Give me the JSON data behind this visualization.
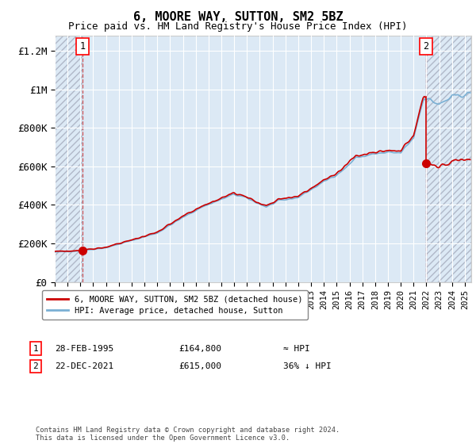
{
  "title": "6, MOORE WAY, SUTTON, SM2 5BZ",
  "subtitle": "Price paid vs. HM Land Registry's House Price Index (HPI)",
  "title_fontsize": 11,
  "subtitle_fontsize": 9,
  "ylabel_fontsize": 9,
  "xlabel_fontsize": 7.5,
  "ylim": [
    0,
    1280000
  ],
  "xlim_start": 1993.0,
  "xlim_end": 2025.5,
  "background_color": "#dce9f5",
  "grid_color": "#ffffff",
  "hpi_line_color": "#7ab0d4",
  "price_line_color": "#cc0000",
  "marker_color": "#cc0000",
  "point1_x": 1995.16,
  "point1_y": 164800,
  "point2_x": 2021.98,
  "point2_y": 615000,
  "legend_label1": "6, MOORE WAY, SUTTON, SM2 5BZ (detached house)",
  "legend_label2": "HPI: Average price, detached house, Sutton",
  "annotation1_date": "28-FEB-1995",
  "annotation1_price": "£164,800",
  "annotation1_hpi": "≈ HPI",
  "annotation2_date": "22-DEC-2021",
  "annotation2_price": "£615,000",
  "annotation2_hpi": "36% ↓ HPI",
  "footer": "Contains HM Land Registry data © Crown copyright and database right 2024.\nThis data is licensed under the Open Government Licence v3.0.",
  "hatch_left_end": 1995.16,
  "hatch_right_start": 2021.98,
  "yticks": [
    0,
    200000,
    400000,
    600000,
    800000,
    1000000,
    1200000
  ],
  "ytick_labels": [
    "£0",
    "£200K",
    "£400K",
    "£600K",
    "£800K",
    "£1M",
    "£1.2M"
  ]
}
